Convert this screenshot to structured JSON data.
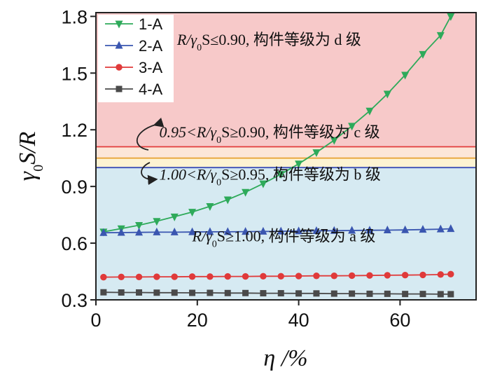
{
  "chart_data": {
    "type": "line",
    "xlabel": "η /%",
    "ylabel": "γ0S/R",
    "xlim": [
      0,
      75
    ],
    "ylim": [
      0.3,
      1.82
    ],
    "x_ticks": [
      "0",
      "20",
      "40",
      "60"
    ],
    "y_ticks": [
      "0.3",
      "0.6",
      "0.9",
      "1.2",
      "1.5",
      "1.8"
    ],
    "x_tick_values": [
      0,
      20,
      40,
      60
    ],
    "y_tick_values": [
      0.3,
      0.6,
      0.9,
      1.2,
      1.5,
      1.8
    ],
    "grid": false,
    "legend_position": "top-left",
    "regions": [
      {
        "from": 0.3,
        "to": 1.0,
        "color": "#d6eaf2"
      },
      {
        "from": 1.0,
        "to": 1.05,
        "color": "#fdf3d2"
      },
      {
        "from": 1.05,
        "to": 1.11,
        "color": "#fce6d8"
      },
      {
        "from": 1.11,
        "to": 1.82,
        "color": "#f7c9c9"
      }
    ],
    "threshold_lines": [
      {
        "y": 1.0,
        "color": "#3d4fb8"
      },
      {
        "y": 1.05,
        "color": "#e8a43a"
      },
      {
        "y": 1.11,
        "color": "#e23b3b"
      }
    ],
    "annotations": [
      {
        "id": "d",
        "x": 16,
        "y": 1.65,
        "parts": [
          "R/γ",
          "0",
          "S≤0.90, 构件等级为 d 级"
        ]
      },
      {
        "id": "c",
        "x": 12.5,
        "y": 1.16,
        "parts": [
          "0.95<R/γ",
          "0",
          "S≥0.90, 构件等级为 c 级"
        ]
      },
      {
        "id": "b",
        "x": 12.5,
        "y": 0.935,
        "parts": [
          "1.00<R/γ",
          "0",
          "S≥0.95, 构件等级为 b 级"
        ]
      },
      {
        "id": "a",
        "x": 19,
        "y": 0.61,
        "parts": [
          "R/γ",
          "0",
          "S≥1.00, 构件等级为 a 级"
        ]
      }
    ],
    "series": [
      {
        "name": "1-A",
        "color": "#2eaa5a",
        "marker": "triangle-down",
        "x": [
          1.5,
          5,
          8.5,
          12,
          15.5,
          19,
          22.5,
          26,
          29.5,
          33,
          36.5,
          40,
          43.5,
          47,
          50.5,
          54,
          57.5,
          61,
          64.5,
          68,
          70
        ],
        "y": [
          0.66,
          0.677,
          0.695,
          0.716,
          0.74,
          0.765,
          0.795,
          0.83,
          0.87,
          0.915,
          0.965,
          1.02,
          1.08,
          1.145,
          1.22,
          1.3,
          1.39,
          1.49,
          1.6,
          1.7,
          1.8
        ]
      },
      {
        "name": "2-A",
        "color": "#3a56b0",
        "marker": "triangle-up",
        "x": [
          1.5,
          5,
          8.5,
          12,
          15.5,
          19,
          22.5,
          26,
          29.5,
          33,
          36.5,
          40,
          43.5,
          47,
          50.5,
          54,
          57.5,
          61,
          64.5,
          68,
          70
        ],
        "y": [
          0.655,
          0.656,
          0.657,
          0.658,
          0.658,
          0.659,
          0.66,
          0.66,
          0.661,
          0.662,
          0.663,
          0.664,
          0.665,
          0.666,
          0.667,
          0.668,
          0.669,
          0.67,
          0.672,
          0.674,
          0.676
        ]
      },
      {
        "name": "3-A",
        "color": "#e03a3a",
        "marker": "circle",
        "x": [
          1.5,
          5,
          8.5,
          12,
          15.5,
          19,
          22.5,
          26,
          29.5,
          33,
          36.5,
          40,
          43.5,
          47,
          50.5,
          54,
          57.5,
          61,
          64.5,
          68,
          70
        ],
        "y": [
          0.42,
          0.421,
          0.421,
          0.422,
          0.422,
          0.423,
          0.423,
          0.424,
          0.424,
          0.425,
          0.425,
          0.426,
          0.427,
          0.427,
          0.428,
          0.429,
          0.43,
          0.431,
          0.432,
          0.434,
          0.436
        ]
      },
      {
        "name": "4-A",
        "color": "#4a4a4a",
        "marker": "square",
        "x": [
          1.5,
          5,
          8.5,
          12,
          15.5,
          19,
          22.5,
          26,
          29.5,
          33,
          36.5,
          40,
          43.5,
          47,
          50.5,
          54,
          57.5,
          61,
          64.5,
          68,
          70
        ],
        "y": [
          0.34,
          0.339,
          0.339,
          0.338,
          0.338,
          0.337,
          0.337,
          0.336,
          0.336,
          0.335,
          0.335,
          0.334,
          0.334,
          0.333,
          0.333,
          0.332,
          0.332,
          0.331,
          0.331,
          0.33,
          0.33
        ]
      }
    ]
  }
}
